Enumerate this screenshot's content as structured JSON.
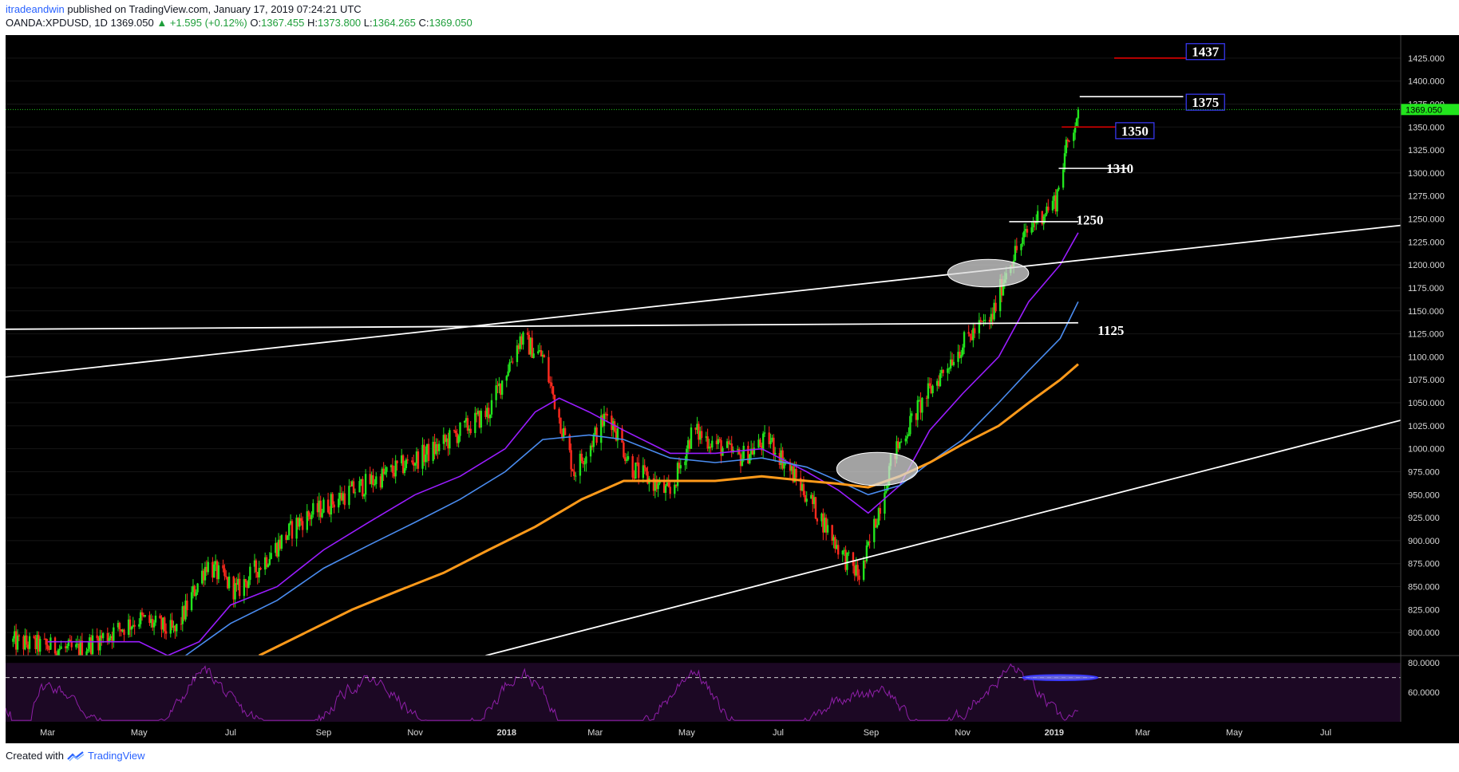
{
  "header": {
    "author": "itradeandwin",
    "published": "published on TradingView.com, January 17, 2019 07:24:21 UTC",
    "symbol": "OANDA:XPDUSD, 1D",
    "last": "1369.050",
    "change": "+1.595 (+0.12%)",
    "o_label": "O:",
    "o": "1367.455",
    "h_label": "H:",
    "h": "1373.800",
    "l_label": "L:",
    "l": "1364.265",
    "c_label": "C:",
    "c": "1369.050"
  },
  "footer": {
    "created_with": "Created with",
    "brand": "TradingView"
  },
  "colors": {
    "background": "#000000",
    "up": "#22e51d",
    "down": "#ff2a1e",
    "ma_fast": "#9a1cff",
    "ma_mid": "#4a8cf0",
    "ma_slow": "#ff9a1a",
    "rsi": "#8f1fa8",
    "price_tag": "#22e51d"
  },
  "chart_data": [
    {
      "type": "candlestick",
      "y_range": [
        775,
        1450
      ],
      "yticks": [
        "1425.000",
        "1400.000",
        "1375.000",
        "1350.000",
        "1325.000",
        "1300.000",
        "1275.000",
        "1250.000",
        "1225.000",
        "1200.000",
        "1175.000",
        "1150.000",
        "1125.000",
        "1100.000",
        "1075.000",
        "1050.000",
        "1025.000",
        "1000.000",
        "975.000",
        "950.000",
        "925.000",
        "900.000",
        "875.000",
        "850.000",
        "825.000",
        "800.000"
      ],
      "x_labels": [
        "Mar",
        "May",
        "Jul",
        "Sep",
        "Nov",
        "2018",
        "Mar",
        "May",
        "Jul",
        "Sep",
        "Nov",
        "2019",
        "Mar",
        "May",
        "Jul"
      ],
      "x_start": "2017-02-01",
      "x_end": "2019-08-20",
      "current_price": "1369.050",
      "price_anchors": [
        [
          "2017-02-05",
          790
        ],
        [
          "2017-03-20",
          780
        ],
        [
          "2017-05-01",
          815
        ],
        [
          "2017-05-25",
          800
        ],
        [
          "2017-06-15",
          875
        ],
        [
          "2017-07-05",
          845
        ],
        [
          "2017-08-15",
          920
        ],
        [
          "2017-09-15",
          950
        ],
        [
          "2017-10-10",
          970
        ],
        [
          "2017-11-15",
          1000
        ],
        [
          "2017-12-20",
          1040
        ],
        [
          "2018-01-10",
          1120
        ],
        [
          "2018-01-25",
          1100
        ],
        [
          "2018-02-15",
          975
        ],
        [
          "2018-03-10",
          1040
        ],
        [
          "2018-03-25",
          980
        ],
        [
          "2018-04-20",
          950
        ],
        [
          "2018-05-05",
          1020
        ],
        [
          "2018-06-05",
          990
        ],
        [
          "2018-06-25",
          1010
        ],
        [
          "2018-07-20",
          950
        ],
        [
          "2018-08-15",
          880
        ],
        [
          "2018-08-25",
          860
        ],
        [
          "2018-09-15",
          990
        ],
        [
          "2018-10-01",
          1040
        ],
        [
          "2018-10-25",
          1100
        ],
        [
          "2018-11-10",
          1130
        ],
        [
          "2018-11-20",
          1140
        ],
        [
          "2018-12-01",
          1200
        ],
        [
          "2018-12-20",
          1250
        ],
        [
          "2019-01-02",
          1270
        ],
        [
          "2019-01-08",
          1320
        ],
        [
          "2019-01-17",
          1369
        ]
      ],
      "moving_averages": [
        {
          "color_key": "ma_fast",
          "points": [
            [
              "2017-03-01",
              790
            ],
            [
              "2017-05-01",
              790
            ],
            [
              "2017-05-20",
              775
            ],
            [
              "2017-06-10",
              790
            ],
            [
              "2017-07-01",
              830
            ],
            [
              "2017-08-01",
              850
            ],
            [
              "2017-09-01",
              890
            ],
            [
              "2017-10-01",
              920
            ],
            [
              "2017-11-01",
              950
            ],
            [
              "2017-12-01",
              970
            ],
            [
              "2017-12-31",
              1000
            ],
            [
              "2018-01-20",
              1040
            ],
            [
              "2018-02-05",
              1055
            ],
            [
              "2018-02-25",
              1040
            ],
            [
              "2018-03-20",
              1020
            ],
            [
              "2018-04-20",
              995
            ],
            [
              "2018-05-20",
              995
            ],
            [
              "2018-06-20",
              1000
            ],
            [
              "2018-07-20",
              975
            ],
            [
              "2018-08-10",
              955
            ],
            [
              "2018-08-30",
              930
            ],
            [
              "2018-09-20",
              960
            ],
            [
              "2018-10-10",
              1020
            ],
            [
              "2018-11-01",
              1060
            ],
            [
              "2018-11-25",
              1100
            ],
            [
              "2018-12-15",
              1160
            ],
            [
              "2019-01-05",
              1200
            ],
            [
              "2019-01-17",
              1235
            ]
          ]
        },
        {
          "color_key": "ma_mid",
          "points": [
            [
              "2017-06-01",
              775
            ],
            [
              "2017-07-01",
              810
            ],
            [
              "2017-08-01",
              835
            ],
            [
              "2017-09-01",
              870
            ],
            [
              "2017-10-01",
              895
            ],
            [
              "2017-11-01",
              920
            ],
            [
              "2017-12-01",
              945
            ],
            [
              "2017-12-31",
              975
            ],
            [
              "2018-01-25",
              1010
            ],
            [
              "2018-02-25",
              1015
            ],
            [
              "2018-03-20",
              1010
            ],
            [
              "2018-04-20",
              990
            ],
            [
              "2018-05-20",
              985
            ],
            [
              "2018-06-20",
              990
            ],
            [
              "2018-07-20",
              980
            ],
            [
              "2018-08-10",
              965
            ],
            [
              "2018-08-30",
              950
            ],
            [
              "2018-09-20",
              960
            ],
            [
              "2018-10-10",
              985
            ],
            [
              "2018-11-01",
              1010
            ],
            [
              "2018-11-25",
              1050
            ],
            [
              "2018-12-15",
              1085
            ],
            [
              "2019-01-05",
              1120
            ],
            [
              "2019-01-17",
              1160
            ]
          ]
        },
        {
          "color_key": "ma_slow",
          "points": [
            [
              "2017-07-20",
              775
            ],
            [
              "2017-08-20",
              800
            ],
            [
              "2017-09-20",
              825
            ],
            [
              "2017-10-20",
              845
            ],
            [
              "2017-11-20",
              865
            ],
            [
              "2017-12-20",
              890
            ],
            [
              "2018-01-20",
              915
            ],
            [
              "2018-02-20",
              945
            ],
            [
              "2018-03-20",
              965
            ],
            [
              "2018-04-20",
              965
            ],
            [
              "2018-05-20",
              965
            ],
            [
              "2018-06-20",
              970
            ],
            [
              "2018-07-20",
              965
            ],
            [
              "2018-08-10",
              962
            ],
            [
              "2018-08-30",
              958
            ],
            [
              "2018-09-20",
              970
            ],
            [
              "2018-10-10",
              985
            ],
            [
              "2018-11-01",
              1005
            ],
            [
              "2018-11-25",
              1025
            ],
            [
              "2018-12-15",
              1050
            ],
            [
              "2019-01-05",
              1075
            ],
            [
              "2019-01-17",
              1092
            ]
          ]
        }
      ],
      "trendlines": [
        {
          "from": [
            "2017-02-01",
            1078
          ],
          "to": [
            "2019-08-20",
            1243
          ]
        },
        {
          "from": [
            "2017-02-01",
            1130
          ],
          "to": [
            "2019-01-17",
            1137
          ]
        },
        {
          "from": [
            "2017-12-18",
            775
          ],
          "to": [
            "2019-08-20",
            1031
          ]
        }
      ],
      "levels": [
        {
          "label": "1437",
          "price": 1425,
          "from": "2019-02-10",
          "to": "2019-03-30",
          "line_color": "#e00000",
          "boxed": true
        },
        {
          "label": "1375",
          "price": 1383,
          "from": "2019-01-18",
          "to": "2019-03-28",
          "line_color": "#ffffff",
          "boxed": true
        },
        {
          "label": "1350",
          "price": 1350,
          "from": "2019-01-06",
          "to": "2019-02-11",
          "line_color": "#e00000",
          "boxed": true
        },
        {
          "label": "1310",
          "price": 1305,
          "from": "2019-01-04",
          "to": "2019-02-20",
          "line_color": "#ffffff",
          "boxed": false
        },
        {
          "label": "1250",
          "price": 1247,
          "from": "2018-12-02",
          "to": "2019-01-17",
          "line_color": "#ffffff",
          "boxed": false
        },
        {
          "label": "1125",
          "price": 1137,
          "from": "2019-01-17",
          "to": "2019-01-17",
          "line_color": "#ffffff",
          "boxed": false
        }
      ],
      "highlights": [
        {
          "center": [
            "2018-09-05",
            978
          ],
          "rx_days": 27,
          "ry_price": 18
        },
        {
          "center": [
            "2018-11-18",
            1191
          ],
          "rx_days": 27,
          "ry_price": 15
        }
      ]
    },
    {
      "type": "line",
      "indicator": "RSI",
      "y_range": [
        40,
        85
      ],
      "yticks": [
        "80.0000",
        "60.0000"
      ],
      "overbought_line": 70,
      "highlight": {
        "center": [
          "2019-01-05",
          70
        ],
        "rx_days": 25,
        "ry_value": 1.8
      }
    }
  ]
}
